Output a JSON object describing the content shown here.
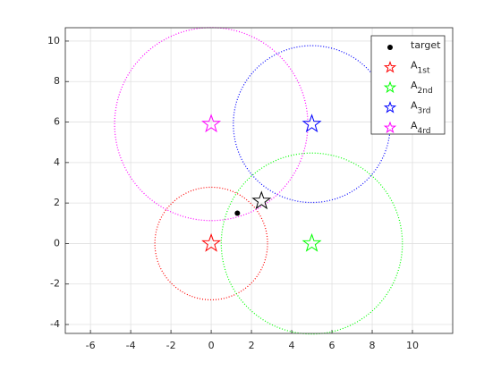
{
  "chart_data": {
    "type": "scatter",
    "xlim": [
      -7.25,
      12
    ],
    "ylim": [
      -4.44,
      10.66
    ],
    "xticks": [
      -6,
      -4,
      -2,
      0,
      2,
      4,
      6,
      8,
      10
    ],
    "yticks": [
      -4,
      -2,
      0,
      2,
      4,
      6,
      8,
      10
    ],
    "grid": true,
    "legend": "northeast",
    "series": [
      {
        "name": "target",
        "color": "#000000",
        "marker": "dot",
        "x": [
          1.3
        ],
        "y": [
          1.5
        ]
      },
      {
        "name": "A",
        "subscript": "1st",
        "color": "#ff0000",
        "marker": "star",
        "x": [
          0
        ],
        "y": [
          0
        ],
        "radius": [
          2.8
        ]
      },
      {
        "name": "A",
        "subscript": "2nd",
        "color": "#00ff00",
        "marker": "star",
        "x": [
          5
        ],
        "y": [
          0
        ],
        "radius": [
          4.5
        ]
      },
      {
        "name": "A",
        "subscript": "3rd",
        "color": "#0000ff",
        "marker": "star",
        "x": [
          5
        ],
        "y": [
          5.9
        ],
        "radius": [
          3.9
        ]
      },
      {
        "name": "A",
        "subscript": "4rd",
        "color": "#ff00ff",
        "marker": "star",
        "x": [
          0
        ],
        "y": [
          5.9
        ],
        "radius": [
          4.8
        ]
      }
    ],
    "estimate": {
      "color": "#000000",
      "x": [
        2.5
      ],
      "y": [
        2.1
      ]
    }
  }
}
